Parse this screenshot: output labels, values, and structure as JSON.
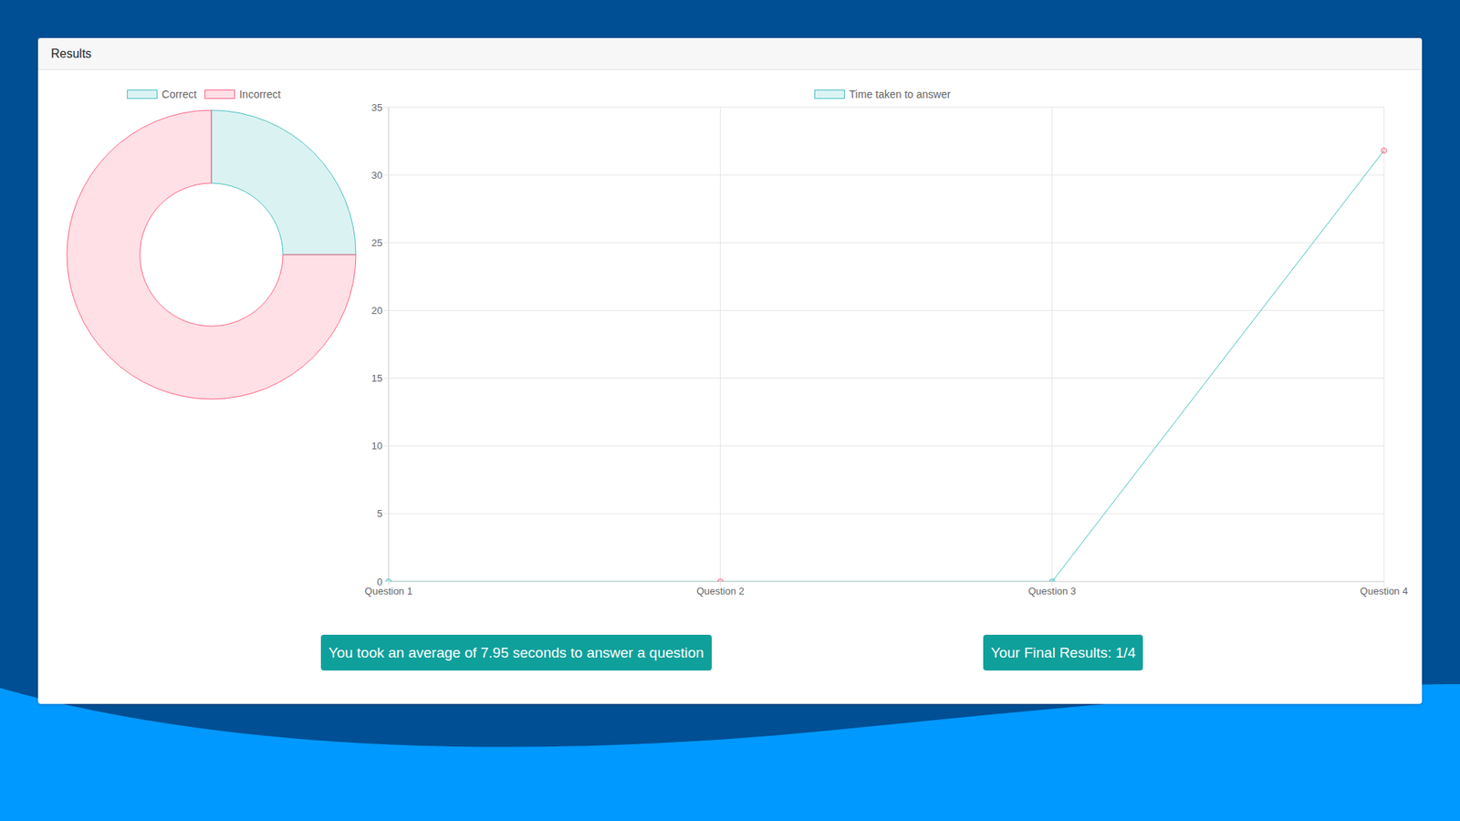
{
  "header": "Results",
  "chart_data": [
    {
      "type": "pie",
      "categories": [
        "Correct",
        "Incorrect"
      ],
      "values": [
        1,
        3
      ],
      "colors": [
        "#4bc0c0",
        "#ff6384"
      ],
      "legend": "top"
    },
    {
      "type": "line",
      "categories": [
        "Question 1",
        "Question 2",
        "Question 3",
        "Question 4"
      ],
      "series": [
        {
          "name": "Time taken to answer",
          "color": "#4bc0c0",
          "values": [
            0,
            0,
            0,
            31.8
          ],
          "colors": [
            "#4bc0c0",
            "#ff6384",
            "#4bc0c0",
            "#ff6384"
          ],
          "marker": "circle"
        }
      ],
      "ylim": [
        0,
        35
      ],
      "yticks": [
        0,
        5,
        10,
        15,
        20,
        25,
        30,
        35
      ],
      "grid": true,
      "legend": "top"
    }
  ],
  "badges": [
    "You took an average of 7.95 seconds to answer a question",
    "Your Final Results: 1/4"
  ]
}
